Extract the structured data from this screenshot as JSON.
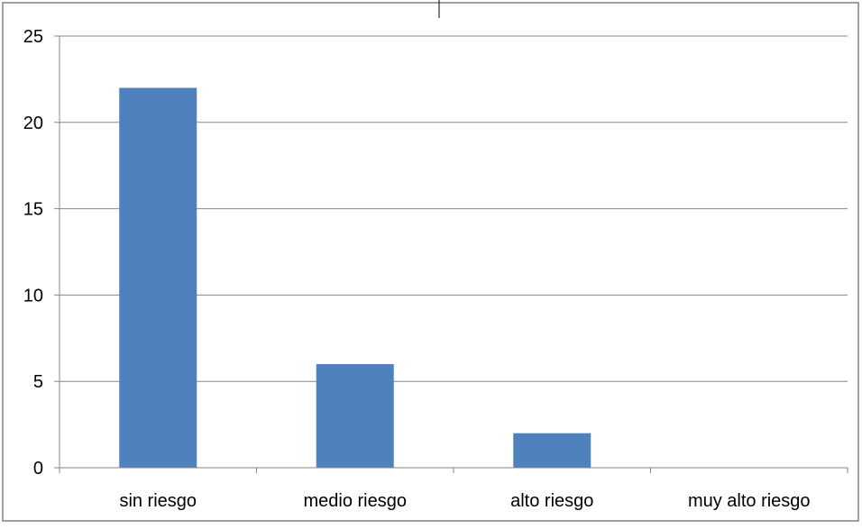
{
  "chart_data": {
    "type": "bar",
    "title": "",
    "xlabel": "",
    "ylabel": "",
    "categories": [
      "sin riesgo",
      "medio riesgo",
      "alto riesgo",
      "muy alto riesgo"
    ],
    "values": [
      22,
      6,
      2,
      0
    ],
    "ylim": [
      0,
      25
    ],
    "yticks": [
      "0",
      "5",
      "10",
      "15",
      "20",
      "25"
    ],
    "grid": true,
    "legend": "none",
    "bar_color": "#4F81BD",
    "gridline_color": "#868686",
    "frame_color": "#808080"
  }
}
